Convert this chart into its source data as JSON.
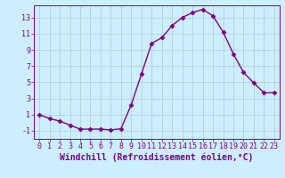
{
  "x": [
    0,
    1,
    2,
    3,
    4,
    5,
    6,
    7,
    8,
    9,
    10,
    11,
    12,
    13,
    14,
    15,
    16,
    17,
    18,
    19,
    20,
    21,
    22,
    23
  ],
  "y": [
    1.0,
    0.5,
    0.2,
    -0.3,
    -0.8,
    -0.8,
    -0.8,
    -0.9,
    -0.75,
    2.2,
    6.0,
    9.8,
    10.5,
    12.0,
    13.0,
    13.6,
    14.0,
    13.2,
    11.2,
    8.5,
    6.2,
    4.9,
    3.7,
    3.7
  ],
  "line_color": "#800080",
  "marker": "D",
  "marker_size": 2.5,
  "bg_color": "#cceeff",
  "grid_color": "#aacccc",
  "xlabel": "Windchill (Refroidissement éolien,°C)",
  "xlim": [
    -0.5,
    23.5
  ],
  "ylim": [
    -2.0,
    14.5
  ],
  "yticks": [
    -1,
    1,
    3,
    5,
    7,
    9,
    11,
    13
  ],
  "xticks": [
    0,
    1,
    2,
    3,
    4,
    5,
    6,
    7,
    8,
    9,
    10,
    11,
    12,
    13,
    14,
    15,
    16,
    17,
    18,
    19,
    20,
    21,
    22,
    23
  ],
  "tick_color": "#800080",
  "label_color": "#800080",
  "label_fontsize": 7.0,
  "tick_fontsize": 6.0,
  "line_width": 1.0
}
